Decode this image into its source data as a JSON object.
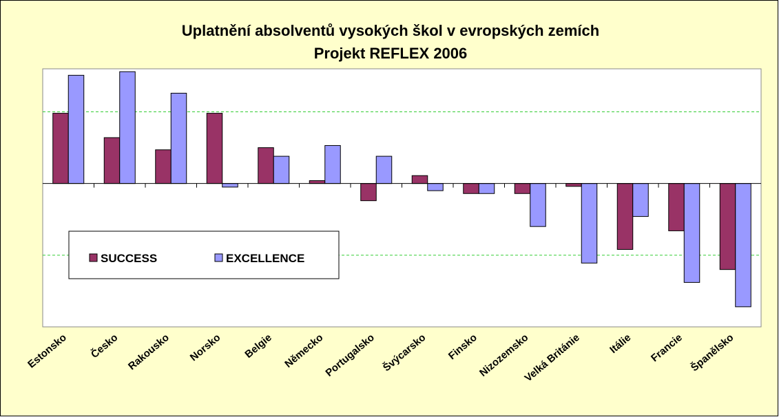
{
  "chart_data": {
    "type": "bar",
    "title": [
      "Uplatnění absolventů vysokých škol v evropských zemích",
      "Projekt REFLEX 2006"
    ],
    "categories": [
      "Estonsko",
      "Česko",
      "Rakousko",
      "Norsko",
      "Belgie",
      "Německo",
      "Portugalsko",
      "Švýcarsko",
      "Finsko",
      "Nizozemsko",
      "Velká Británie",
      "Itálie",
      "Francie",
      "Španělsko"
    ],
    "series": [
      {
        "name": "SUCCESS",
        "color": "#993366",
        "values": [
          0.98,
          0.64,
          0.47,
          0.98,
          0.5,
          0.04,
          -0.24,
          0.11,
          -0.14,
          -0.14,
          -0.04,
          -0.92,
          -0.66,
          -1.2
        ]
      },
      {
        "name": "EXCELLENCE",
        "color": "#9999ff",
        "values": [
          1.51,
          1.56,
          1.26,
          -0.05,
          0.38,
          0.53,
          0.38,
          -0.1,
          -0.14,
          -0.6,
          -1.11,
          -0.46,
          -1.38,
          -1.72
        ]
      }
    ],
    "ylim": [
      -2,
      1.6
    ],
    "yticks": [
      -1,
      0,
      1
    ],
    "grid": true,
    "grid_color": "#33cc33"
  }
}
